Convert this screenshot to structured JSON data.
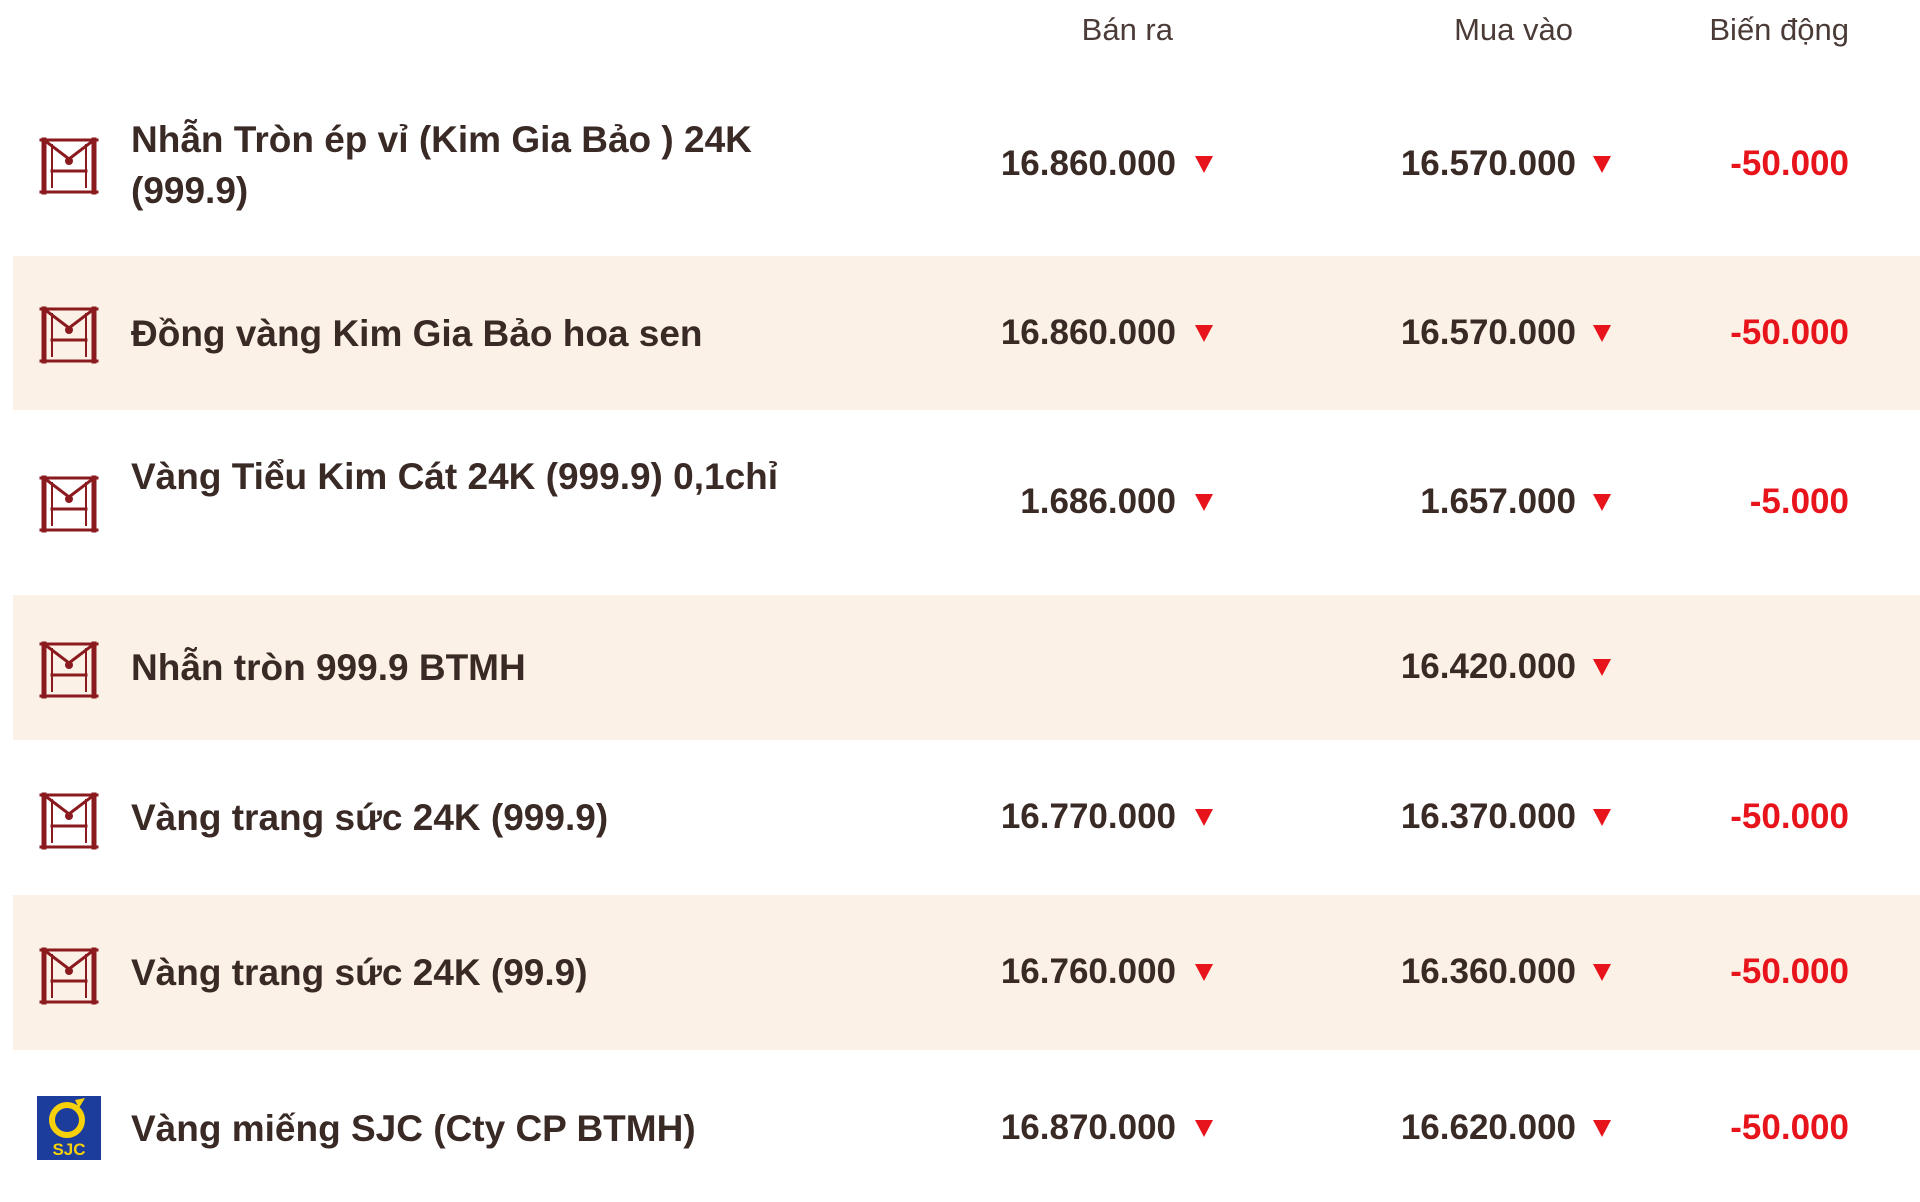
{
  "header": {
    "sell_label": "Bán ra",
    "buy_label": "Mua vào",
    "change_label": "Biến động"
  },
  "colors": {
    "brand_text": "#3a2a26",
    "logo_red": "#8b1a1f",
    "down_red": "#e8141c",
    "row_shade": "#fbf1e6",
    "sjc_blue": "#1c3d9c",
    "sjc_yellow": "#f6d10a"
  },
  "rows": [
    {
      "logo": "btmh-logo",
      "name": "Nhẫn Tròn ép vỉ (Kim Gia Bảo ) 24K (999.9)",
      "sell": "16.860.000",
      "sell_trend": "down",
      "buy": "16.570.000",
      "buy_trend": "down",
      "change": "-50.000"
    },
    {
      "logo": "btmh-logo",
      "name": "Đồng vàng Kim Gia Bảo hoa sen",
      "sell": "16.860.000",
      "sell_trend": "down",
      "buy": "16.570.000",
      "buy_trend": "down",
      "change": "-50.000"
    },
    {
      "logo": "btmh-logo",
      "name": "Vàng Tiểu Kim Cát 24K (999.9) 0,1chỉ",
      "sell": "1.686.000",
      "sell_trend": "down",
      "buy": "1.657.000",
      "buy_trend": "down",
      "change": "-5.000"
    },
    {
      "logo": "btmh-logo",
      "name": "Nhẫn tròn 999.9 BTMH",
      "sell": "",
      "buy": "16.420.000",
      "buy_trend": "down",
      "change": ""
    },
    {
      "logo": "btmh-logo",
      "name": "Vàng trang sức 24K (999.9)",
      "sell": "16.770.000",
      "sell_trend": "down",
      "buy": "16.370.000",
      "buy_trend": "down",
      "change": "-50.000"
    },
    {
      "logo": "btmh-logo",
      "name": "Vàng trang sức 24K (99.9)",
      "sell": "16.760.000",
      "sell_trend": "down",
      "buy": "16.360.000",
      "buy_trend": "down",
      "change": "-50.000"
    },
    {
      "logo": "sjc-logo",
      "logo_text": "SJC",
      "name": "Vàng miếng SJC (Cty CP BTMH)",
      "sell": "16.870.000",
      "sell_trend": "down",
      "buy": "16.620.000",
      "buy_trend": "down",
      "change": "-50.000"
    }
  ]
}
